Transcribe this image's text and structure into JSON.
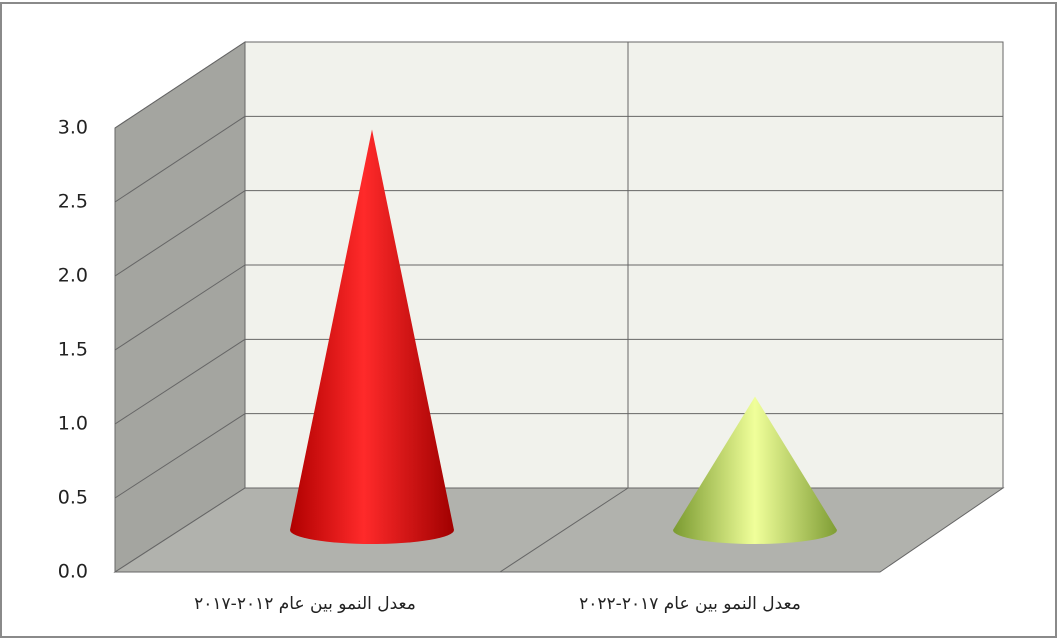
{
  "chart_data": {
    "type": "cone",
    "categories": [
      "معدل النمو بين عام ٢٠١٢-٢٠١٧",
      "معدل النمو بين عام ٢٠١٧-٢٠٢٢"
    ],
    "values": [
      2.7,
      0.9
    ],
    "colors": [
      "#ff1010",
      "#c8e87a"
    ],
    "ylim": [
      0,
      3
    ],
    "yticks": [
      {
        "value": 0,
        "label": "0.0"
      },
      {
        "value": 0.5,
        "label": "0.5"
      },
      {
        "value": 1,
        "label": "1.0"
      },
      {
        "value": 1.5,
        "label": "1.5"
      },
      {
        "value": 2,
        "label": "2.0"
      },
      {
        "value": 2.5,
        "label": "2.5"
      },
      {
        "value": 3,
        "label": "3.0"
      }
    ],
    "grid": true
  }
}
